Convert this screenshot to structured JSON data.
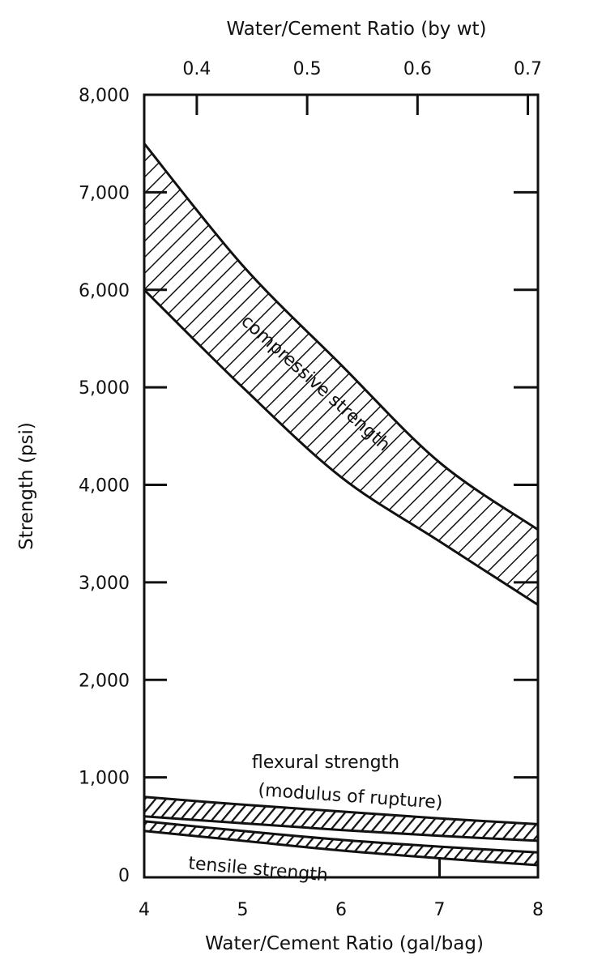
{
  "chart_data": {
    "type": "area",
    "title": "",
    "xlabel": "Water/Cement Ratio (gal/bag)",
    "ylabel": "Strength (psi)",
    "x2label": "Water/Cement Ratio (by wt)",
    "xlim": [
      4,
      8
    ],
    "ylim": [
      0,
      8000
    ],
    "x_ticks": [
      "4",
      "5",
      "6",
      "7",
      "8"
    ],
    "x2_ticks": [
      "0.4",
      "0.5",
      "0.6",
      "0.7"
    ],
    "x2_tick_values": [
      0.4,
      0.5,
      0.6,
      0.7
    ],
    "y_ticks": [
      "0",
      "1,000",
      "2,000",
      "3,000",
      "4,000",
      "5,000",
      "6,000",
      "7,000",
      "8,000"
    ],
    "grid": false,
    "x": [
      4,
      5,
      6,
      7,
      8
    ],
    "bands": [
      {
        "name": "compressive strength",
        "upper": [
          7500,
          6250,
          5230,
          4230,
          3540
        ],
        "lower": [
          6000,
          5000,
          4080,
          3420,
          2770
        ]
      },
      {
        "name": "flexural strength (modulus of rupture)",
        "upper": [
          800,
          720,
          650,
          580,
          520
        ],
        "lower": [
          600,
          530,
          460,
          400,
          350
        ]
      },
      {
        "name": "tensile strength",
        "upper": [
          550,
          450,
          360,
          290,
          230
        ],
        "lower": [
          450,
          350,
          250,
          170,
          100
        ]
      }
    ],
    "annotations": {
      "compressive": "compressive strength",
      "flexural_1": "flexural strength",
      "flexural_2": "(modulus of rupture)",
      "tensile": "tensile strength"
    },
    "colors": {
      "ink": "#111111",
      "background": "#ffffff"
    }
  }
}
